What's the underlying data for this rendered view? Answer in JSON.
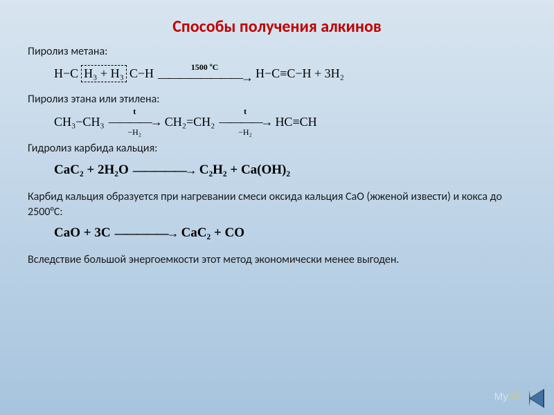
{
  "title": "Способы получения алкинов",
  "sections": {
    "pyrolysis_methane_label": "Пиролиз метана:",
    "pyrolysis_ethane_label": "Пиролиз этана или этилена:",
    "hydrolysis_carbide_label": "Гидролиз карбида кальция:",
    "carbide_formation_text": "Карбид кальция образуется при нагревании смеси оксида кальция CaO (жженой извести) и кокса до 2500°С:",
    "conclusion_text": "Вследствие большой энергоемкости этот метод экономически менее выгоден."
  },
  "reactions": {
    "methane": {
      "left_prefix": "H−C",
      "boxed": "H₃ + H₃",
      "left_suffix": "C−H",
      "arrow_top": "1500 ºC",
      "right": "H−C≡C−H + 3H₂"
    },
    "ethane": {
      "r1": "CH₃−CH₃",
      "arrow1_top": "t",
      "arrow1_bottom": "−H₂",
      "r2": "CH₂=CH₂",
      "arrow2_top": "t",
      "arrow2_bottom": "−H₂",
      "r3": "HC≡CH"
    },
    "carbide_hydrolysis": {
      "left": "CaC₂ + 2H₂O",
      "right": "C₂H₂ + Ca(OH)₂"
    },
    "carbide_formation": {
      "left": "CaO + 3C",
      "right": "CaC₂ + CO"
    }
  },
  "watermark": {
    "my": "My",
    "sh": "Sh"
  },
  "colors": {
    "title_color": "#c00000",
    "bg_top": "#d8e5f0",
    "bg_bottom": "#a7c4de",
    "text": "#1a1a1a",
    "nav_fill": "#4471a3",
    "nav_border": "#2b4a6f"
  },
  "fonts": {
    "title_size": 24,
    "body_size": 16,
    "formula_size": 18
  }
}
